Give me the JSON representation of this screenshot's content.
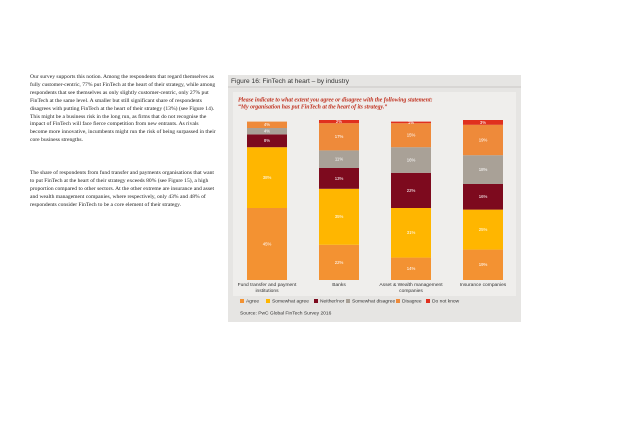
{
  "document": {
    "paragraphs": [
      "Our survey supports this notion. Among the respondents that regard themselves as fully customer-centric, 77% put FinTech at the heart of their strategy, while among respondents that see themselves as only slightly customer-centric, only 27% put FinTech at the same level. A smaller but still significant share of respondents disagrees with putting FinTech at the heart of their strategy (13%) (see Figure 14). This might be a business risk in the long run, as firms that do not recognise the impact of FinTech will face fierce competition from new entrants. As rivals become more innovative, incumbents might run the risk of being surpassed in their core business strengths.",
      "The share of respondents from fund transfer and payments organisations that want to put FinTech at the heart of their strategy exceeds 80% (see Figure 15), a high proportion compared to other sectors. At the other extreme are insurance and asset and wealth management companies, where respectively, only 43% and 48% of respondents consider FinTech to be a core element of their strategy."
    ]
  },
  "chart_data": {
    "type": "stacked_bar",
    "title": "Figure 16: FinTech at heart – by industry",
    "subtitle": "Please indicate to what extent you agree or disagree with the following statement:",
    "question": "“My organisation has put FinTech at the heart of its strategy.”",
    "source": "Source: PwC Global FinTech Survey 2016",
    "categories": [
      "Fund transfer and payment institutions",
      "Banks",
      "Asset & Wealth management companies",
      "Insurance companies"
    ],
    "ylim": [
      0,
      100
    ],
    "series": [
      {
        "name": "Agree",
        "color": "#f39232",
        "values": [
          45,
          22,
          14,
          19
        ],
        "value_labels": [
          "45%",
          "22%",
          "14%",
          "19%"
        ]
      },
      {
        "name": "Somewhat agree",
        "color": "#ffb600",
        "values": [
          38,
          35,
          31,
          25
        ],
        "value_labels": [
          "38%",
          "35%",
          "31%",
          "25%"
        ]
      },
      {
        "name": "Neither/nor",
        "color": "#7d0a1e",
        "values": [
          8,
          13,
          22,
          16
        ],
        "value_labels": [
          "8%",
          "13%",
          "22%",
          "16%"
        ]
      },
      {
        "name": "Somewhat disagree",
        "color": "#a9a197",
        "values": [
          4,
          11,
          16,
          18
        ],
        "value_labels": [
          "4%",
          "11%",
          "16%",
          "18%"
        ]
      },
      {
        "name": "Disagree",
        "color": "#ee8a3a",
        "values": [
          4,
          17,
          15,
          19
        ],
        "value_labels": [
          "4%",
          "17%",
          "15%",
          "19%"
        ]
      },
      {
        "name": "Do not know",
        "color": "#e0301e",
        "values": [
          null,
          2,
          1,
          3
        ],
        "value_labels": [
          null,
          "2%",
          "1%",
          "3%"
        ]
      }
    ]
  }
}
